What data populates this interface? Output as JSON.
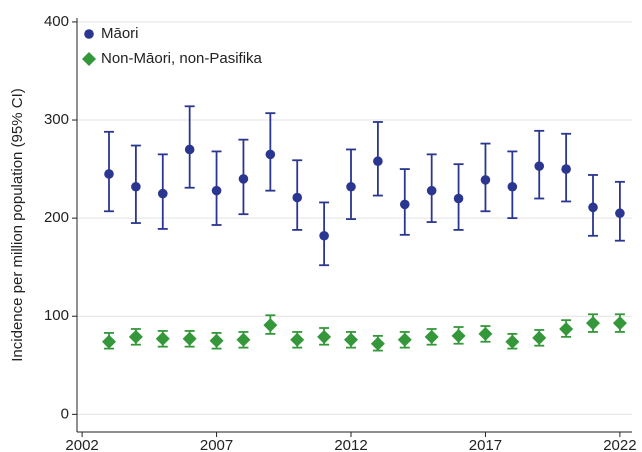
{
  "chart_data": {
    "type": "scatter",
    "y_label": "Incidence per million population (95% CI)",
    "x": [
      2003,
      2004,
      2005,
      2006,
      2007,
      2008,
      2009,
      2010,
      2011,
      2012,
      2013,
      2014,
      2015,
      2016,
      2017,
      2018,
      2019,
      2020,
      2021,
      2022
    ],
    "series": [
      {
        "name": "Māori",
        "color": "#2b3690",
        "marker": "circle",
        "values": [
          245,
          232,
          225,
          270,
          228,
          240,
          265,
          221,
          182,
          232,
          258,
          214,
          228,
          220,
          239,
          232,
          253,
          250,
          211,
          205
        ],
        "lower": [
          207,
          195,
          189,
          231,
          193,
          204,
          228,
          188,
          152,
          199,
          223,
          183,
          196,
          188,
          207,
          200,
          220,
          217,
          182,
          177
        ],
        "upper": [
          288,
          274,
          265,
          314,
          268,
          280,
          307,
          259,
          216,
          270,
          298,
          250,
          265,
          255,
          276,
          268,
          289,
          286,
          244,
          237
        ]
      },
      {
        "name": "Non-Māori, non-Pasifika",
        "color": "#34983a",
        "marker": "diamond",
        "values": [
          74,
          79,
          77,
          77,
          75,
          76,
          91,
          76,
          79,
          76,
          72,
          76,
          79,
          80,
          82,
          74,
          78,
          87,
          93,
          93
        ],
        "lower": [
          67,
          71,
          69,
          69,
          67,
          68,
          82,
          68,
          71,
          68,
          65,
          68,
          71,
          72,
          74,
          67,
          70,
          79,
          84,
          84
        ],
        "upper": [
          83,
          87,
          85,
          85,
          83,
          84,
          101,
          84,
          88,
          84,
          80,
          84,
          87,
          89,
          90,
          82,
          86,
          96,
          102,
          102
        ]
      }
    ],
    "xlim": [
      2001.81,
      2022.45
    ],
    "xticks": [
      2002,
      2007,
      2012,
      2017,
      2022
    ],
    "ylim": [
      -18,
      404
    ],
    "yticks": [
      0,
      100,
      200,
      300,
      400
    ],
    "grid": true,
    "legend": "top-left"
  }
}
